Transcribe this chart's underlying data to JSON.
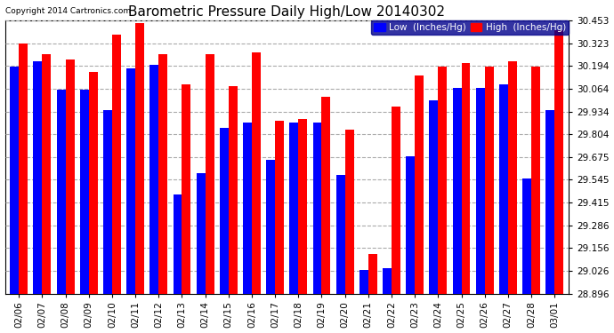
{
  "title": "Barometric Pressure Daily High/Low 20140302",
  "copyright": "Copyright 2014 Cartronics.com",
  "legend_low": "Low  (Inches/Hg)",
  "legend_high": "High  (Inches/Hg)",
  "dates": [
    "02/06",
    "02/07",
    "02/08",
    "02/09",
    "02/10",
    "02/11",
    "02/12",
    "02/13",
    "02/14",
    "02/15",
    "02/16",
    "02/17",
    "02/18",
    "02/19",
    "02/20",
    "02/21",
    "02/22",
    "02/23",
    "02/24",
    "02/25",
    "02/26",
    "02/27",
    "02/28",
    "03/01"
  ],
  "low_values": [
    30.19,
    30.22,
    30.06,
    30.06,
    29.94,
    30.18,
    30.2,
    29.46,
    29.58,
    29.84,
    29.87,
    29.66,
    29.87,
    29.87,
    29.57,
    29.03,
    29.04,
    29.68,
    30.0,
    30.07,
    30.07,
    30.09,
    29.55,
    29.94
  ],
  "high_values": [
    30.32,
    30.26,
    30.23,
    30.16,
    30.37,
    30.44,
    30.26,
    30.09,
    30.26,
    30.08,
    30.27,
    29.88,
    29.89,
    30.02,
    29.83,
    29.12,
    29.96,
    30.14,
    30.19,
    30.21,
    30.19,
    30.22,
    30.19,
    30.4
  ],
  "ymin": 28.896,
  "ymax": 30.453,
  "yticks": [
    28.896,
    29.026,
    29.156,
    29.286,
    29.415,
    29.545,
    29.675,
    29.804,
    29.934,
    30.064,
    30.194,
    30.323,
    30.453
  ],
  "bar_color_low": "#0000ff",
  "bar_color_high": "#ff0000",
  "bg_color": "#ffffff",
  "grid_color": "#aaaaaa",
  "title_fontsize": 11,
  "tick_fontsize": 7.5,
  "legend_fontsize": 7.5,
  "bar_width": 0.38
}
